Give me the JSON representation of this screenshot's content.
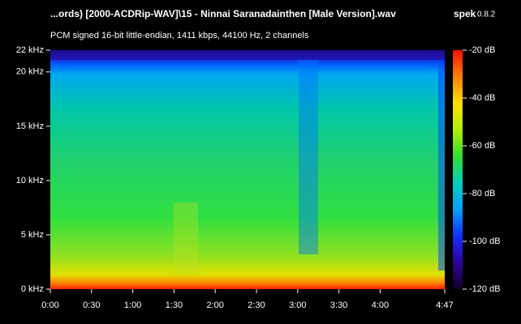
{
  "chart_data": {
    "type": "spectrogram",
    "title": "...ords) [2000-ACDRip-WAV]\\15 - Ninnai Saranadainthen [Male Version].wav",
    "app_name": "spek",
    "app_version": "0.8.2",
    "subtitle": "PCM signed 16-bit little-endian, 1411 kbps, 44100 Hz, 2 channels",
    "xlim": [
      0,
      287
    ],
    "xticks": [
      {
        "value": 0,
        "label": "0:00"
      },
      {
        "value": 30,
        "label": "0:30"
      },
      {
        "value": 60,
        "label": "1:00"
      },
      {
        "value": 90,
        "label": "1:30"
      },
      {
        "value": 120,
        "label": "2:00"
      },
      {
        "value": 150,
        "label": "2:30"
      },
      {
        "value": 180,
        "label": "3:00"
      },
      {
        "value": 210,
        "label": "3:30"
      },
      {
        "value": 240,
        "label": "4:00"
      },
      {
        "value": 287,
        "label": "4:47"
      }
    ],
    "ylim": [
      0,
      22
    ],
    "yticks": [
      {
        "value": 0,
        "label": "0 kHz"
      },
      {
        "value": 5,
        "label": "5 kHz"
      },
      {
        "value": 10,
        "label": "10 kHz"
      },
      {
        "value": 15,
        "label": "15 kHz"
      },
      {
        "value": 20,
        "label": "20 kHz"
      },
      {
        "value": 22,
        "label": "22 kHz"
      }
    ],
    "colorbar": {
      "lim": [
        -120,
        -20
      ],
      "ticks": [
        {
          "value": -20,
          "label": "-20 dB"
        },
        {
          "value": -40,
          "label": "-40 dB"
        },
        {
          "value": -60,
          "label": "-60 dB"
        },
        {
          "value": -80,
          "label": "-80 dB"
        },
        {
          "value": -100,
          "label": "-100 dB"
        },
        {
          "value": -120,
          "label": "-120 dB"
        }
      ],
      "colors": [
        "#ff1000",
        "#ff8000",
        "#ffe000",
        "#b0f000",
        "#30e030",
        "#00d0c0",
        "#00a0ff",
        "#1030ff",
        "#3000a0",
        "#100020"
      ]
    }
  }
}
